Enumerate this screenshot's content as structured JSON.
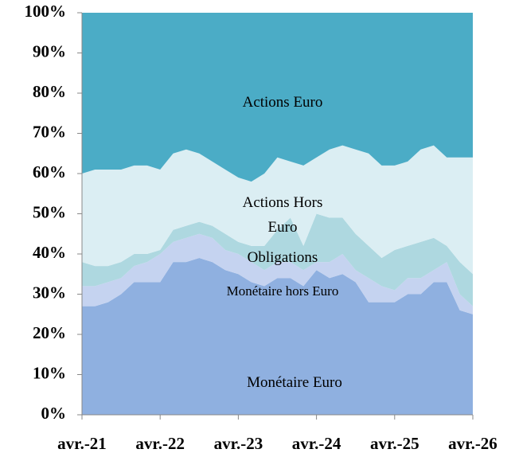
{
  "chart_data": {
    "type": "stacked-area",
    "categories": [
      "avr.-21",
      null,
      null,
      null,
      null,
      null,
      "avr.-22",
      null,
      null,
      null,
      null,
      null,
      "avr.-23",
      null,
      null,
      null,
      null,
      null,
      "avr.-24",
      null,
      null,
      null,
      null,
      null,
      "avr.-25",
      null,
      null,
      null,
      null,
      null,
      "avr.-26"
    ],
    "series": [
      {
        "name": "Monétaire Euro",
        "color": "#8fb0e0",
        "values": [
          27,
          27,
          28,
          30,
          33,
          33,
          33,
          38,
          38,
          39,
          38,
          36,
          35,
          33,
          32,
          34,
          34,
          32,
          36,
          34,
          35,
          33,
          28,
          28,
          28,
          30,
          30,
          33,
          33,
          26,
          25
        ]
      },
      {
        "name": "Monétaire hors Euro",
        "color": "#c5d3f0",
        "values": [
          5,
          5,
          5,
          4,
          4,
          5,
          7,
          5,
          6,
          6,
          6,
          5,
          5,
          5,
          4,
          4,
          4,
          4,
          2,
          4,
          5,
          3,
          6,
          4,
          3,
          4,
          4,
          3,
          5,
          4,
          2
        ]
      },
      {
        "name": "Obligations",
        "color": "#aed8e0",
        "values": [
          6,
          5,
          4,
          4,
          3,
          2,
          1,
          3,
          3,
          3,
          3,
          4,
          3,
          4,
          6,
          8,
          11,
          6,
          12,
          11,
          9,
          9,
          8,
          7,
          10,
          8,
          9,
          8,
          4,
          8,
          8
        ]
      },
      {
        "name": "Actions Hors Euro",
        "color": "#dbeef3",
        "values": [
          22,
          24,
          24,
          23,
          22,
          22,
          20,
          19,
          19,
          17,
          16,
          16,
          16,
          16,
          18,
          18,
          14,
          20,
          14,
          17,
          18,
          21,
          23,
          23,
          21,
          21,
          23,
          23,
          22,
          26,
          29
        ]
      },
      {
        "name": "Actions Euro",
        "color": "#4bacc6",
        "values": [
          40,
          39,
          39,
          39,
          38,
          38,
          39,
          35,
          34,
          35,
          37,
          39,
          41,
          42,
          40,
          36,
          37,
          38,
          36,
          34,
          33,
          34,
          35,
          38,
          38,
          37,
          34,
          33,
          36,
          36,
          36
        ]
      }
    ],
    "ylim": [
      0,
      100
    ],
    "yticks": [
      {
        "value": 0,
        "label": "0%"
      },
      {
        "value": 10,
        "label": "10%"
      },
      {
        "value": 20,
        "label": "20%"
      },
      {
        "value": 30,
        "label": "30%"
      },
      {
        "value": 40,
        "label": "40%"
      },
      {
        "value": 50,
        "label": "50%"
      },
      {
        "value": 60,
        "label": "60%"
      },
      {
        "value": 70,
        "label": "70%"
      },
      {
        "value": 80,
        "label": "80%"
      },
      {
        "value": 90,
        "label": "90%"
      },
      {
        "value": 100,
        "label": "100%"
      }
    ]
  }
}
